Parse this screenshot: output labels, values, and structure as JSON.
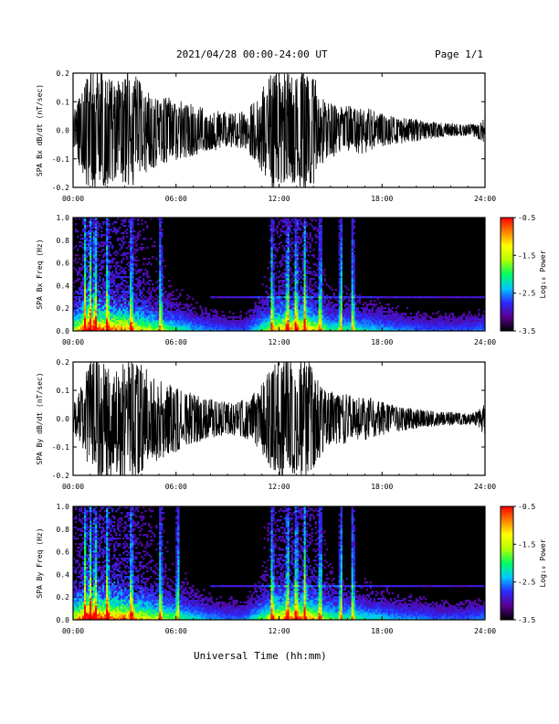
{
  "header": {
    "title": "2021/04/28  00:00-24:00 UT",
    "page": "Page 1/1"
  },
  "footer": {
    "xlabel": "Universal Time (hh:mm)"
  },
  "colors": {
    "trace": "#000000",
    "background": "#ffffff",
    "colormap": [
      "#000000",
      "#5a0090",
      "#2a2aff",
      "#00c8ff",
      "#00ff60",
      "#b4ff00",
      "#ffff00",
      "#ff8000",
      "#ff0000"
    ]
  },
  "chart_data": [
    {
      "type": "line",
      "ylabel": "SPA Bx dB/dt (nT/sec)",
      "xlim": [
        "00:00",
        "24:00"
      ],
      "ylim": [
        -0.2,
        0.2
      ],
      "xticks": [
        "00:00",
        "06:00",
        "12:00",
        "18:00",
        "24:00"
      ],
      "yticks": [
        "-0.2",
        "-0.1",
        "0.0",
        "0.1",
        "0.2"
      ],
      "envelope": {
        "hours": [
          0,
          0.5,
          1,
          1.5,
          2,
          2.5,
          3,
          3.5,
          4,
          4.5,
          5,
          5.5,
          6,
          6.5,
          7,
          7.5,
          8,
          8.5,
          9,
          9.5,
          10,
          10.5,
          11,
          11.5,
          12,
          12.5,
          13,
          13.5,
          14,
          14.5,
          15,
          15.5,
          16,
          16.5,
          17,
          17.5,
          18,
          18.5,
          19,
          19.5,
          20,
          20.5,
          21,
          21.5,
          22,
          22.5,
          23,
          23.5,
          24
        ],
        "amplitude": [
          0.07,
          0.15,
          0.22,
          0.22,
          0.2,
          0.17,
          0.2,
          0.22,
          0.16,
          0.14,
          0.12,
          0.12,
          0.11,
          0.1,
          0.09,
          0.08,
          0.07,
          0.07,
          0.06,
          0.06,
          0.07,
          0.1,
          0.15,
          0.2,
          0.22,
          0.2,
          0.18,
          0.22,
          0.2,
          0.12,
          0.1,
          0.08,
          0.09,
          0.08,
          0.09,
          0.07,
          0.06,
          0.05,
          0.05,
          0.04,
          0.04,
          0.03,
          0.03,
          0.025,
          0.025,
          0.02,
          0.02,
          0.025,
          0.05
        ]
      }
    },
    {
      "type": "heatmap",
      "ylabel": "SPA Bx Freq (Hz)",
      "colorbar_label": "Log₁₀ Power",
      "xlim": [
        "00:00",
        "24:00"
      ],
      "ylim": [
        0.0,
        1.0
      ],
      "xticks": [
        "00:00",
        "06:00",
        "12:00",
        "18:00",
        "24:00"
      ],
      "yticks": [
        "0.0",
        "0.2",
        "0.4",
        "0.6",
        "0.8",
        "1.0"
      ],
      "color_range": [
        -3.5,
        -0.5
      ],
      "colorbar_ticks": [
        "-0.5",
        "-1.5",
        "-2.5",
        "-3.5"
      ],
      "bright_hours": [
        0.7,
        1.0,
        1.3,
        2.0,
        3.4,
        5.1,
        11.6,
        12.5,
        13.0,
        13.5,
        14.4,
        15.6,
        16.3
      ],
      "activity": {
        "hours": [
          0,
          1,
          2,
          3,
          4,
          5,
          6,
          7,
          8,
          9,
          10,
          11,
          12,
          13,
          14,
          15,
          16,
          17,
          18,
          19,
          20,
          21,
          22,
          23,
          24
        ],
        "level": [
          0.6,
          1.0,
          0.85,
          0.8,
          0.65,
          0.55,
          0.45,
          0.35,
          0.3,
          0.25,
          0.25,
          0.45,
          0.75,
          0.8,
          0.7,
          0.45,
          0.45,
          0.4,
          0.35,
          0.3,
          0.28,
          0.25,
          0.25,
          0.25,
          0.3
        ]
      }
    },
    {
      "type": "line",
      "ylabel": "SPA By dB/dt (nT/sec)",
      "xlim": [
        "00:00",
        "24:00"
      ],
      "ylim": [
        -0.2,
        0.2
      ],
      "xticks": [
        "00:00",
        "06:00",
        "12:00",
        "18:00",
        "24:00"
      ],
      "yticks": [
        "-0.2",
        "-0.1",
        "0.0",
        "0.1",
        "0.2"
      ],
      "envelope": {
        "hours": [
          0,
          0.5,
          1,
          1.5,
          2,
          2.5,
          3,
          3.5,
          4,
          4.5,
          5,
          5.5,
          6,
          6.5,
          7,
          7.5,
          8,
          8.5,
          9,
          9.5,
          10,
          10.5,
          11,
          11.5,
          12,
          12.5,
          13,
          13.5,
          14,
          14.5,
          15,
          15.5,
          16,
          16.5,
          17,
          17.5,
          18,
          18.5,
          19,
          19.5,
          20,
          20.5,
          21,
          21.5,
          22,
          22.5,
          23,
          23.5,
          24
        ],
        "amplitude": [
          0.05,
          0.12,
          0.22,
          0.22,
          0.21,
          0.2,
          0.22,
          0.22,
          0.2,
          0.16,
          0.15,
          0.14,
          0.12,
          0.1,
          0.09,
          0.08,
          0.07,
          0.06,
          0.06,
          0.06,
          0.07,
          0.09,
          0.12,
          0.18,
          0.22,
          0.22,
          0.2,
          0.22,
          0.18,
          0.12,
          0.1,
          0.09,
          0.09,
          0.08,
          0.08,
          0.07,
          0.06,
          0.05,
          0.045,
          0.04,
          0.035,
          0.03,
          0.028,
          0.025,
          0.025,
          0.022,
          0.02,
          0.025,
          0.06
        ]
      }
    },
    {
      "type": "heatmap",
      "ylabel": "SPA By Freq (Hz)",
      "colorbar_label": "Log₁₀ Power",
      "xlim": [
        "00:00",
        "24:00"
      ],
      "ylim": [
        0.0,
        1.0
      ],
      "xticks": [
        "00:00",
        "06:00",
        "12:00",
        "18:00",
        "24:00"
      ],
      "yticks": [
        "0.0",
        "0.2",
        "0.4",
        "0.6",
        "0.8",
        "1.0"
      ],
      "color_range": [
        -3.5,
        -0.5
      ],
      "colorbar_ticks": [
        "-0.5",
        "-1.5",
        "-2.5",
        "-3.5"
      ],
      "bright_hours": [
        0.7,
        1.0,
        1.3,
        2.0,
        3.4,
        5.1,
        6.1,
        11.6,
        12.5,
        13.0,
        13.5,
        14.4,
        15.6,
        16.3
      ],
      "activity": {
        "hours": [
          0,
          1,
          2,
          3,
          4,
          5,
          6,
          7,
          8,
          9,
          10,
          11,
          12,
          13,
          14,
          15,
          16,
          17,
          18,
          19,
          20,
          21,
          22,
          23,
          24
        ],
        "level": [
          0.65,
          1.0,
          0.9,
          0.85,
          0.7,
          0.6,
          0.5,
          0.4,
          0.32,
          0.28,
          0.28,
          0.5,
          0.8,
          0.85,
          0.72,
          0.5,
          0.48,
          0.42,
          0.38,
          0.32,
          0.3,
          0.27,
          0.26,
          0.26,
          0.3
        ]
      }
    }
  ]
}
